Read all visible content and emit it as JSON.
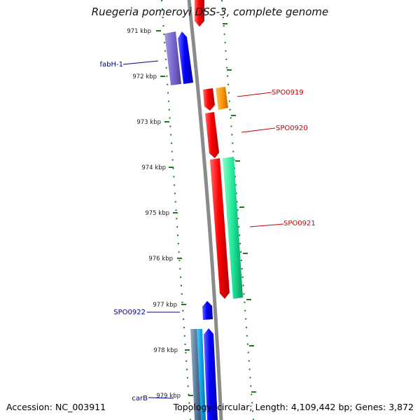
{
  "title": "Ruegeria pomeroyi DSS-3, complete genome",
  "footer": {
    "accession": "Accession: NC_003911",
    "topology": "Topology: circular; Length: 4,109,442 bp; Genes: 3,872"
  },
  "kbp_labels": [
    "971 kbp",
    "972 kbp",
    "973 kbp",
    "974 kbp",
    "975 kbp",
    "976 kbp",
    "977 kbp",
    "978 kbp",
    "979 kbp"
  ],
  "gene_labels": {
    "fabH": "fabH-1",
    "spo0919": "SPO0919",
    "spo0920": "SPO0920",
    "spo0921": "SPO0921",
    "spo0922": "SPO0922",
    "carB": "carB"
  },
  "colors": {
    "backbone": "#8a8a8a",
    "tick": "#1f7a1f",
    "left_label": "#00008b",
    "right_label": "#cc0000"
  }
}
